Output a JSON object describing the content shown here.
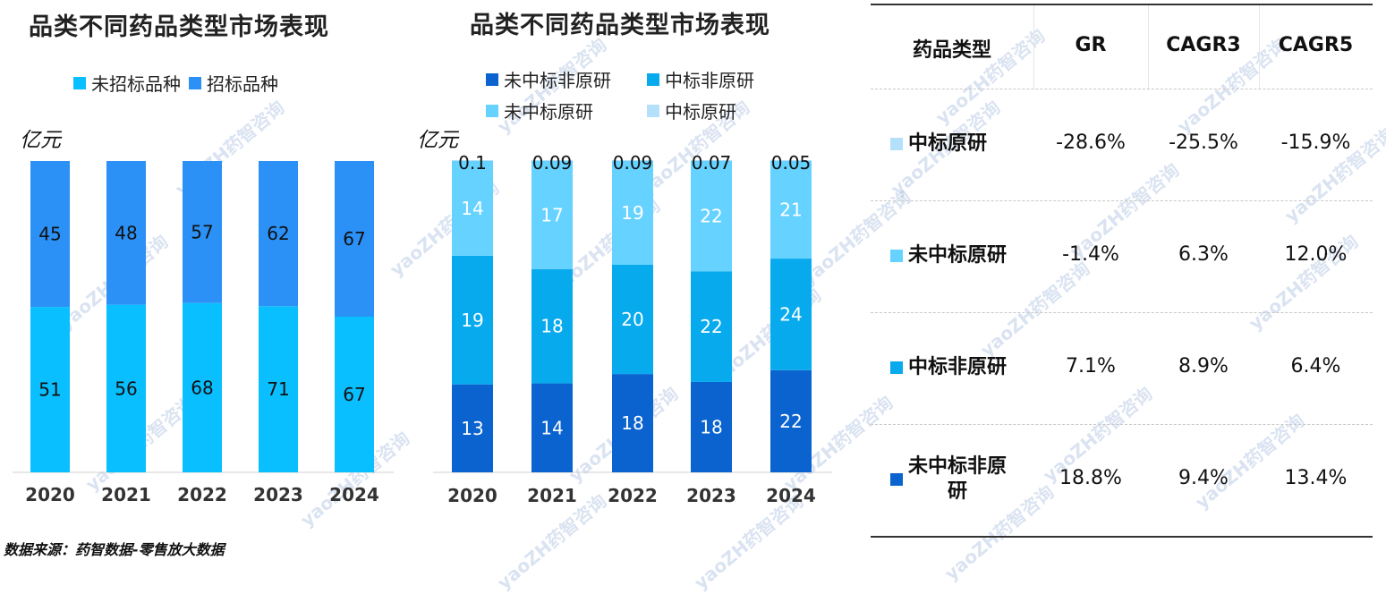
{
  "chart_data": [
    {
      "type": "bar",
      "stacked": true,
      "title": "品类不同药品类型市场表现",
      "ylabel": "亿元",
      "categories": [
        "2020",
        "2021",
        "2022",
        "2023",
        "2024"
      ],
      "series": [
        {
          "name": "未招标品种",
          "color": "#0ABFFF",
          "values": [
            51,
            56,
            68,
            71,
            67
          ]
        },
        {
          "name": "招标品种",
          "color": "#2B91F7",
          "values": [
            45,
            48,
            57,
            62,
            67
          ]
        }
      ],
      "legend_position": "top"
    },
    {
      "type": "bar",
      "stacked": true,
      "title": "品类不同药品类型市场表现",
      "ylabel": "亿元",
      "categories": [
        "2020",
        "2021",
        "2022",
        "2023",
        "2024"
      ],
      "series": [
        {
          "name": "未中标非原研",
          "color": "#0A63CE",
          "values": [
            13,
            14,
            18,
            18,
            22
          ],
          "labels": [
            "13",
            "14",
            "18",
            "18",
            "22"
          ]
        },
        {
          "name": "中标非原研",
          "color": "#08AAEE",
          "values": [
            19,
            18,
            20,
            22,
            24
          ],
          "labels": [
            "19",
            "18",
            "20",
            "22",
            "24"
          ]
        },
        {
          "name": "未中标原研",
          "color": "#66D2FF",
          "values": [
            14,
            17,
            19,
            22,
            21
          ],
          "labels": [
            "14",
            "17",
            "19",
            "22",
            "21"
          ]
        },
        {
          "name": "中标原研",
          "color": "#B4E0FB",
          "values": [
            0.1,
            0.09,
            0.09,
            0.07,
            0.05
          ],
          "labels": [
            "0.1",
            "0.09",
            "0.09",
            "0.07",
            "0.05"
          ]
        }
      ],
      "legend_position": "top"
    },
    {
      "type": "table",
      "columns": [
        "药品类型",
        "GR",
        "CAGR3",
        "CAGR5"
      ],
      "rows": [
        {
          "label": "中标原研",
          "color": "#B4E0FB",
          "values": [
            "-28.6%",
            "-25.5%",
            "-15.9%"
          ]
        },
        {
          "label": "未中标原研",
          "color": "#66D2FF",
          "values": [
            "-1.4%",
            "6.3%",
            "12.0%"
          ]
        },
        {
          "label": "中标非原研",
          "color": "#08AAEE",
          "values": [
            "7.1%",
            "8.9%",
            "6.4%"
          ]
        },
        {
          "label": "未中标非原\n研",
          "color": "#0A63CE",
          "values": [
            "18.8%",
            "9.4%",
            "13.4%"
          ]
        }
      ]
    }
  ],
  "source": "数据来源：药智数据-零售放大数据",
  "watermark": "yaoZH药智咨询"
}
